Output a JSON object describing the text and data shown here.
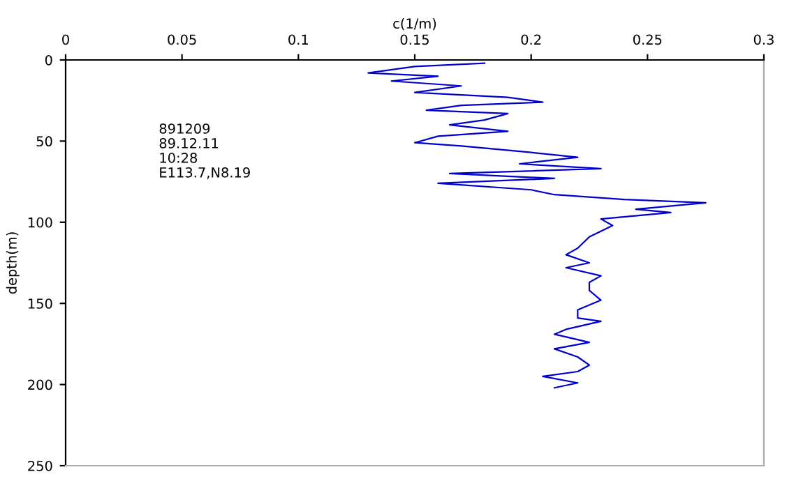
{
  "chart_data": {
    "type": "line",
    "xlabel": "c(1/m)",
    "ylabel": "depth(m)",
    "xlim": [
      0,
      0.3
    ],
    "xticks": [
      0,
      0.05,
      0.1,
      0.15,
      0.2,
      0.25,
      0.3
    ],
    "ylim": [
      250,
      0
    ],
    "yticks": [
      0,
      50,
      100,
      150,
      200,
      250
    ],
    "grid": false,
    "legend": false,
    "marker": "none",
    "line_style": "solid",
    "annotations": [
      "891209",
      "89.12.11",
      "10:28",
      "E113.7,N8.19"
    ],
    "series": [
      {
        "color": "#0000cc",
        "x": [
          0.18,
          0.15,
          0.13,
          0.16,
          0.14,
          0.17,
          0.15,
          0.19,
          0.205,
          0.17,
          0.155,
          0.19,
          0.18,
          0.165,
          0.19,
          0.16,
          0.15,
          0.17,
          0.2,
          0.22,
          0.195,
          0.23,
          0.165,
          0.21,
          0.16,
          0.2,
          0.21,
          0.24,
          0.275,
          0.245,
          0.26,
          0.23,
          0.235,
          0.225,
          0.22,
          0.215,
          0.225,
          0.215,
          0.23,
          0.225,
          0.225,
          0.23,
          0.22,
          0.22,
          0.23,
          0.215,
          0.21,
          0.225,
          0.21,
          0.22,
          0.225,
          0.22,
          0.205,
          0.22,
          0.21
        ],
        "values": [
          2,
          4,
          8,
          10,
          13,
          16,
          20,
          23,
          26,
          28,
          31,
          33,
          37,
          40,
          44,
          47,
          51,
          53,
          57,
          60,
          64,
          67,
          70,
          73,
          76,
          80,
          83,
          86,
          88,
          92,
          94,
          98,
          102,
          109,
          116,
          120,
          125,
          128,
          133,
          137,
          142,
          148,
          154,
          159,
          161,
          166,
          169,
          174,
          178,
          183,
          188,
          192,
          195,
          199,
          202
        ]
      }
    ]
  }
}
